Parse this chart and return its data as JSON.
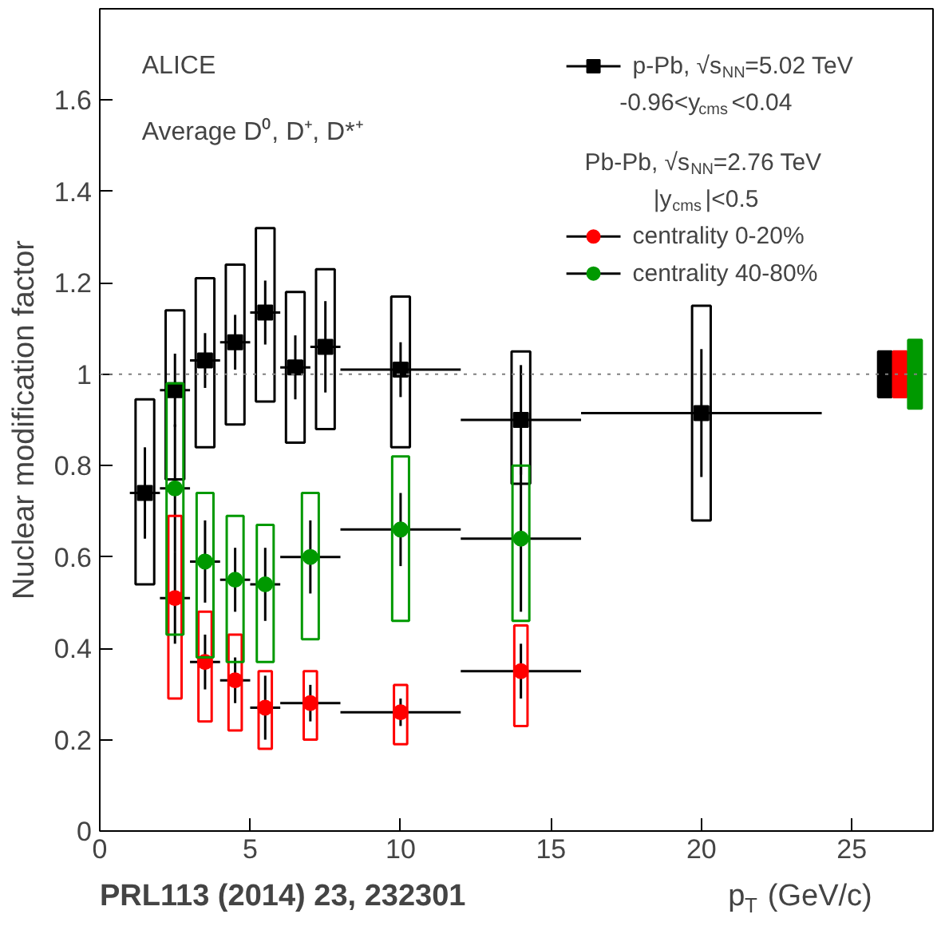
{
  "chart_data": {
    "type": "scatter",
    "ylabel": "Nuclear modification factor",
    "xlabel": "p$_{T}$ (GeV/c)",
    "xlim": [
      0,
      27.7
    ],
    "ylim": [
      0,
      1.8
    ],
    "xticks": [
      0,
      5,
      10,
      15,
      20,
      25
    ],
    "yticks": [
      0,
      0.2,
      0.4,
      0.6,
      0.8,
      1,
      1.2,
      1.4,
      1.6
    ],
    "grid": false,
    "legend": "top right",
    "annotations": [
      "ALICE",
      "Average D⁰, D⁺, D*⁺",
      "-0.96<y$_{cms}$<0.04",
      "Pb-Pb, √s$_{NN}$=2.76 TeV",
      "|y$_{cms}$|<0.5",
      "PRL113 (2014) 23, 232301"
    ],
    "ref_lines": [
      {
        "axis": "y",
        "value": 1,
        "color": "#808080",
        "line_style": "dotted"
      }
    ],
    "series": [
      {
        "name": "p-Pb, √s$_{NN}$=5.02 TeV",
        "marker": "square",
        "color": "#000000",
        "x": [
          1.5,
          2.5,
          3.5,
          4.5,
          5.5,
          6.5,
          7.5,
          10,
          14,
          20
        ],
        "values": [
          0.74,
          0.965,
          1.03,
          1.07,
          1.135,
          1.015,
          1.06,
          1.01,
          0.9,
          0.915
        ],
        "errors": [
          0.1,
          0.08,
          0.06,
          0.06,
          0.07,
          0.07,
          0.1,
          0.06,
          0.12,
          0.14
        ],
        "xerrors": [
          0.5,
          0.5,
          0.5,
          0.5,
          0.5,
          0.5,
          0.5,
          2,
          2,
          4
        ]
      },
      {
        "name": "centrality 0-20%",
        "marker": "circle",
        "color": "#ff0000",
        "x": [
          2.5,
          3.5,
          4.5,
          5.5,
          7,
          10,
          14
        ],
        "values": [
          0.51,
          0.37,
          0.33,
          0.27,
          0.28,
          0.26,
          0.35
        ],
        "errors": [
          0.1,
          0.06,
          0.05,
          0.07,
          0.04,
          0.03,
          0.06
        ],
        "xerrors": [
          0.5,
          0.5,
          0.5,
          0.5,
          1,
          2,
          2
        ]
      },
      {
        "name": "centrality 40-80%",
        "marker": "circle",
        "color": "#009900",
        "x": [
          2.5,
          3.5,
          4.5,
          5.5,
          7,
          10,
          14
        ],
        "values": [
          0.75,
          0.59,
          0.55,
          0.54,
          0.6,
          0.66,
          0.64
        ],
        "errors": [
          0.14,
          0.09,
          0.07,
          0.08,
          0.08,
          0.08,
          0.16
        ],
        "xerrors": [
          0.5,
          0.5,
          0.5,
          0.5,
          1,
          2,
          2
        ]
      },
      {
        "type": "bar",
        "color": "#000000",
        "x": [
          1.5,
          2.5,
          3.5,
          4.5,
          5.5,
          6.5,
          7.5,
          10,
          14,
          20
        ],
        "base": [
          0.54,
          0.77,
          0.84,
          0.89,
          0.94,
          0.85,
          0.88,
          0.84,
          0.76,
          0.68
        ],
        "values": [
          0.405,
          0.37,
          0.37,
          0.35,
          0.38,
          0.33,
          0.35,
          0.33,
          0.29,
          0.47
        ]
      },
      {
        "type": "bar",
        "color": "#ff0000",
        "x": [
          2.5,
          3.5,
          4.5,
          5.5,
          7,
          10,
          14
        ],
        "base": [
          0.29,
          0.24,
          0.22,
          0.18,
          0.2,
          0.19,
          0.23
        ],
        "values": [
          0.4,
          0.24,
          0.21,
          0.17,
          0.15,
          0.13,
          0.22
        ]
      },
      {
        "type": "bar",
        "color": "#009900",
        "x": [
          2.5,
          3.5,
          4.5,
          5.5,
          7,
          10,
          14
        ],
        "base": [
          0.43,
          0.38,
          0.37,
          0.37,
          0.42,
          0.46,
          0.46
        ],
        "values": [
          0.55,
          0.36,
          0.32,
          0.3,
          0.32,
          0.36,
          0.34
        ]
      },
      {
        "type": "bar",
        "color": "#000000",
        "x": [
          26.1
        ],
        "base": [
          0.95
        ],
        "values": [
          0.1
        ]
      },
      {
        "type": "bar",
        "color": "#ff0000",
        "x": [
          26.6
        ],
        "base": [
          0.95
        ],
        "values": [
          0.1
        ]
      },
      {
        "type": "bar",
        "color": "#009900",
        "x": [
          27.1
        ],
        "base": [
          0.925
        ],
        "values": [
          0.15
        ]
      }
    ]
  }
}
